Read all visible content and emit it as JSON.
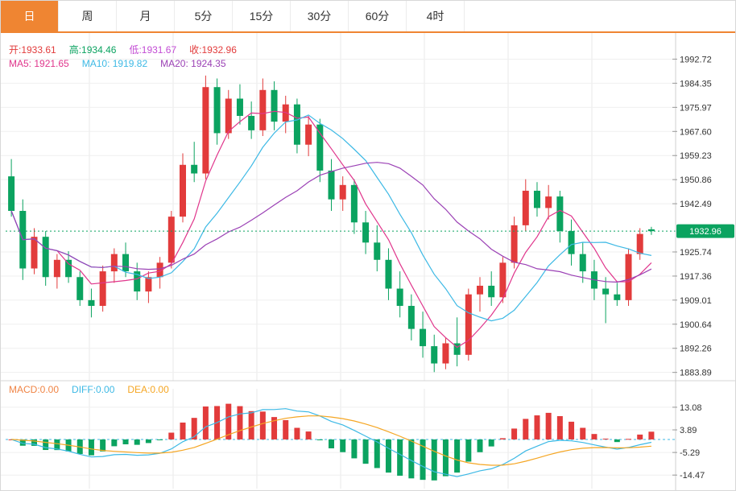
{
  "tabs": [
    {
      "id": "day",
      "label": "日",
      "active": true
    },
    {
      "id": "week",
      "label": "周",
      "active": false
    },
    {
      "id": "month",
      "label": "月",
      "active": false
    },
    {
      "id": "5min",
      "label": "5分",
      "active": false
    },
    {
      "id": "15min",
      "label": "15分",
      "active": false
    },
    {
      "id": "30min",
      "label": "30分",
      "active": false
    },
    {
      "id": "60min",
      "label": "60分",
      "active": false
    },
    {
      "id": "4hour",
      "label": "4时",
      "active": false
    }
  ],
  "ohlc_row": [
    {
      "text": "开:1933.61",
      "color": "#e23b3b"
    },
    {
      "text": "高:1934.46",
      "color": "#0ba360"
    },
    {
      "text": "低:1931.67",
      "color": "#c24bd4"
    },
    {
      "text": "收:1932.96",
      "color": "#e23b3b"
    }
  ],
  "ma_row": [
    {
      "text": "MA5: 1921.65",
      "color": "#e0368c"
    },
    {
      "text": "MA10: 1919.82",
      "color": "#3db9e5"
    },
    {
      "text": "MA20: 1924.35",
      "color": "#9b41b5"
    }
  ],
  "macd_row": [
    {
      "text": "MACD:0.00",
      "color": "#f08445"
    },
    {
      "text": "DIFF:0.00",
      "color": "#3db9e5"
    },
    {
      "text": "DEA:0.00",
      "color": "#f5a623"
    }
  ],
  "colors": {
    "up": "#e23b3b",
    "down": "#0ba360",
    "ma5": "#e0368c",
    "ma10": "#3db9e5",
    "ma20": "#9b41b5",
    "diff": "#3db9e5",
    "dea": "#f5a623",
    "accent": "#ef8532",
    "grid": "#efefef",
    "vgrid": "#e8e8e8",
    "axis_line": "#cfcfcf",
    "axis_text": "#333333",
    "price_tag_bg": "#0ba360",
    "price_tag_text": "#ffffff",
    "dotted_line": "#0ba360"
  },
  "chart_data": {
    "type": "candlestick",
    "panels": [
      "price",
      "macd"
    ],
    "legend": [
      "MA5",
      "MA10",
      "MA20"
    ],
    "ma_periods": [
      5,
      10,
      20
    ],
    "current_price": 1932.96,
    "ohlc": {
      "open": 1933.61,
      "high": 1934.46,
      "low": 1931.67,
      "close": 1932.96
    },
    "ma_values": {
      "ma5": 1921.65,
      "ma10": 1919.82,
      "ma20": 1924.35
    },
    "macd_values": {
      "macd": 0.0,
      "diff": 0.0,
      "dea": 0.0
    },
    "price_axis_ticks": [
      1992.72,
      1984.35,
      1975.97,
      1967.6,
      1959.23,
      1950.86,
      1942.49,
      1925.74,
      1917.36,
      1909.01,
      1900.64,
      1892.26,
      1883.89
    ],
    "price_range": [
      1881,
      1999
    ],
    "macd_axis_ticks": [
      13.08,
      3.89,
      -5.29,
      -14.47
    ],
    "macd_range": [
      -18,
      16
    ],
    "candles": [
      [
        1952,
        1958,
        1938,
        1940
      ],
      [
        1940,
        1944,
        1916,
        1920
      ],
      [
        1920,
        1934,
        1918,
        1931
      ],
      [
        1931,
        1933,
        1914,
        1917
      ],
      [
        1917,
        1925,
        1913,
        1923
      ],
      [
        1923,
        1926,
        1915,
        1917
      ],
      [
        1917,
        1919,
        1907,
        1909
      ],
      [
        1909,
        1913,
        1903,
        1907
      ],
      [
        1907,
        1921,
        1905,
        1919
      ],
      [
        1919,
        1927,
        1915,
        1925
      ],
      [
        1925,
        1929,
        1917,
        1919
      ],
      [
        1919,
        1922,
        1909,
        1912
      ],
      [
        1912,
        1919,
        1908,
        1917
      ],
      [
        1917,
        1924,
        1913,
        1922
      ],
      [
        1922,
        1940,
        1920,
        1938
      ],
      [
        1938,
        1960,
        1936,
        1956
      ],
      [
        1956,
        1964,
        1950,
        1953
      ],
      [
        1953,
        1987,
        1951,
        1983
      ],
      [
        1983,
        1986,
        1963,
        1967
      ],
      [
        1967,
        1982,
        1965,
        1979
      ],
      [
        1979,
        1984,
        1970,
        1973
      ],
      [
        1973,
        1978,
        1965,
        1968
      ],
      [
        1968,
        1986,
        1966,
        1982
      ],
      [
        1982,
        1985,
        1968,
        1971
      ],
      [
        1971,
        1980,
        1967,
        1977
      ],
      [
        1977,
        1979,
        1960,
        1963
      ],
      [
        1963,
        1973,
        1959,
        1970
      ],
      [
        1970,
        1972,
        1950,
        1954
      ],
      [
        1954,
        1958,
        1940,
        1944
      ],
      [
        1944,
        1952,
        1940,
        1949
      ],
      [
        1949,
        1951,
        1932,
        1936
      ],
      [
        1936,
        1940,
        1925,
        1929
      ],
      [
        1929,
        1935,
        1919,
        1923
      ],
      [
        1923,
        1927,
        1909,
        1913
      ],
      [
        1913,
        1919,
        1903,
        1907
      ],
      [
        1907,
        1911,
        1895,
        1899
      ],
      [
        1899,
        1905,
        1889,
        1893
      ],
      [
        1893,
        1897,
        1884,
        1887
      ],
      [
        1887,
        1896,
        1885,
        1894
      ],
      [
        1894,
        1903,
        1886,
        1890
      ],
      [
        1890,
        1913,
        1888,
        1911
      ],
      [
        1911,
        1917,
        1905,
        1914
      ],
      [
        1914,
        1919,
        1907,
        1910
      ],
      [
        1910,
        1924,
        1908,
        1922
      ],
      [
        1922,
        1938,
        1920,
        1935
      ],
      [
        1935,
        1951,
        1933,
        1947
      ],
      [
        1947,
        1950,
        1938,
        1941
      ],
      [
        1941,
        1949,
        1937,
        1945
      ],
      [
        1945,
        1947,
        1929,
        1933
      ],
      [
        1933,
        1937,
        1921,
        1925
      ],
      [
        1925,
        1929,
        1915,
        1919
      ],
      [
        1919,
        1923,
        1909,
        1913
      ],
      [
        1913,
        1917,
        1901,
        1911
      ],
      [
        1911,
        1915,
        1907,
        1909
      ],
      [
        1909,
        1927,
        1907,
        1925
      ],
      [
        1925,
        1934,
        1923,
        1932
      ],
      [
        1933.61,
        1934.46,
        1931.67,
        1932.96
      ]
    ]
  }
}
